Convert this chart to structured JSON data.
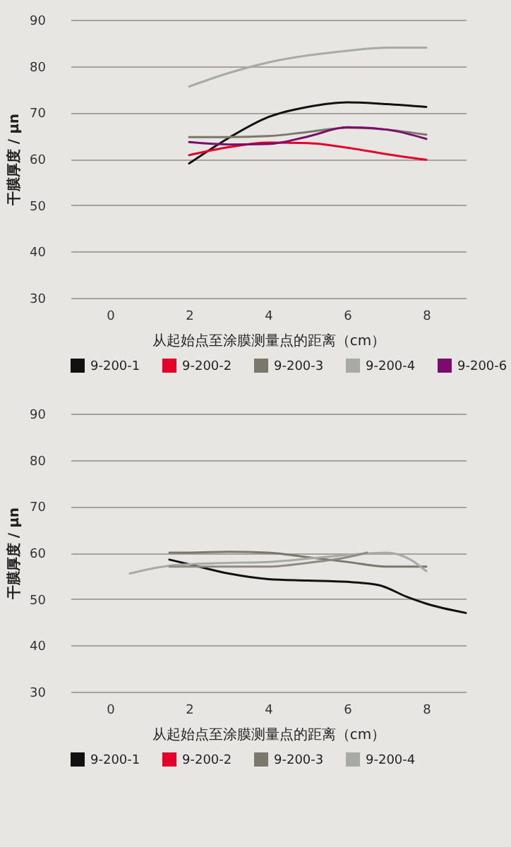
{
  "chart_data": [
    {
      "type": "line",
      "xlabel": "从起始点至涂膜测量点的距离（cm）",
      "ylabel": "干膜厚度 / μn",
      "xlim": [
        -1,
        9
      ],
      "xticks": [
        0,
        2,
        4,
        6,
        8
      ],
      "ylim": [
        30,
        90
      ],
      "yticks": [
        30,
        40,
        50,
        60,
        70,
        80,
        90
      ],
      "grid": "y",
      "legend": "bottom",
      "x": [
        2,
        3,
        4,
        5,
        6,
        7,
        8
      ],
      "series": [
        {
          "name": "9-200-1",
          "color": "#111111",
          "values": [
            59,
            64.5,
            69,
            71.2,
            72.2,
            71.8,
            71.2
          ]
        },
        {
          "name": "9-200-2",
          "color": "#e4002b",
          "values": [
            60.8,
            62.5,
            63.5,
            63.4,
            62.4,
            61,
            59.8
          ]
        },
        {
          "name": "9-200-3",
          "color": "#7a786b",
          "values": [
            64.7,
            64.7,
            64.9,
            65.8,
            66.7,
            66.3,
            65.2
          ]
        },
        {
          "name": "9-200-4",
          "color": "#a8aba5",
          "values": [
            75.6,
            78.5,
            80.8,
            82.3,
            83.3,
            84,
            84
          ]
        },
        {
          "name": "9-200-6",
          "color": "#7b0c6e",
          "values": [
            63.6,
            63.1,
            63.2,
            64.8,
            66.8,
            66.3,
            64.3
          ]
        }
      ]
    },
    {
      "type": "line",
      "xlabel": "从起始点至涂膜测量点的距离（cm）",
      "ylabel": "干膜厚度 / μn",
      "xlim": [
        -1,
        9
      ],
      "xticks": [
        0,
        2,
        4,
        6,
        8
      ],
      "ylim": [
        30,
        90
      ],
      "yticks": [
        30,
        40,
        50,
        60,
        70,
        80,
        90
      ],
      "grid": "y",
      "legend": "bottom",
      "series": [
        {
          "name": "9-200-1",
          "color": "#111111",
          "x": [
            1.5,
            2,
            3,
            4,
            5,
            6,
            6.8,
            7.5,
            8,
            9
          ],
          "values": [
            58.5,
            57.5,
            55.5,
            54.3,
            54,
            53.7,
            53,
            50.5,
            49,
            47
          ]
        },
        {
          "name": "9-200-2",
          "color": "#e4002b"
        },
        {
          "name": "9-200-3",
          "color": "#7a786b",
          "x": [
            1.5,
            2,
            3,
            4,
            5,
            6,
            7,
            8
          ],
          "values": [
            60,
            60,
            60.2,
            60,
            59,
            58,
            57,
            57
          ]
        },
        {
          "name": "9-200-4",
          "color": "#a8aba5",
          "x": [
            0.5,
            1.5,
            2,
            3,
            4,
            5,
            6,
            7,
            7.6,
            8
          ],
          "values": [
            55.5,
            57.2,
            57.5,
            57.8,
            58,
            58.7,
            59.5,
            60,
            58.5,
            56
          ]
        },
        {
          "color": "#8e8c82",
          "x": [
            1.5,
            2,
            3,
            4,
            5,
            6,
            6.5
          ],
          "values": [
            57,
            57,
            57,
            57,
            57.8,
            59,
            60
          ]
        }
      ]
    }
  ]
}
